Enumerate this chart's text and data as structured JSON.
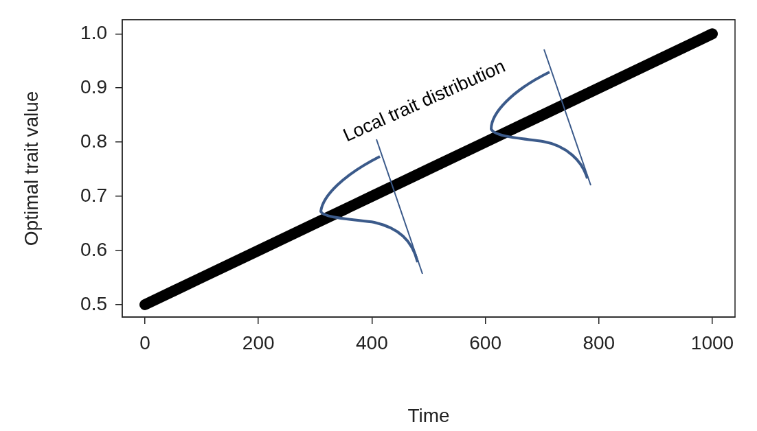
{
  "chart_data": {
    "type": "line",
    "xlabel": "Time",
    "ylabel": "Optimal trait value",
    "x": [
      0,
      100,
      200,
      300,
      400,
      500,
      600,
      700,
      800,
      900,
      1000
    ],
    "series": [
      {
        "color": "#000000",
        "values": [
          0.5,
          0.55,
          0.6,
          0.65,
          0.7,
          0.75,
          0.8,
          0.85,
          0.9,
          0.95,
          1.0
        ]
      }
    ],
    "xlim": [
      -40,
      1040
    ],
    "ylim": [
      0.477,
      1.026
    ],
    "xticks": [
      0,
      200,
      400,
      600,
      800,
      1000
    ],
    "yticks": [
      0.5,
      0.6,
      0.7,
      0.8,
      0.9,
      {
        "value": 1,
        "label": "1.0"
      }
    ],
    "grid": false,
    "legend": false,
    "marker": "none",
    "line_style": "solid",
    "annotations": [
      "Local trait distribution"
    ]
  }
}
